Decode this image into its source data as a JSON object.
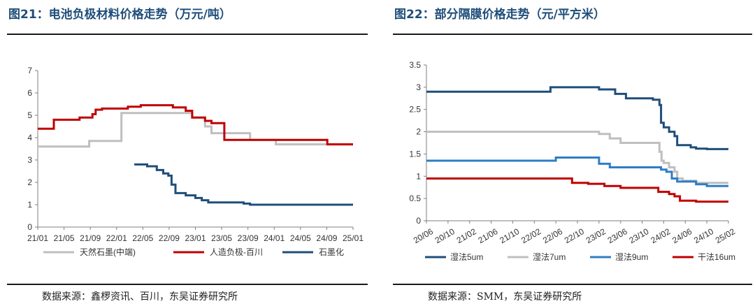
{
  "charts": [
    {
      "title": "图21：电池负极材料价格走势（万元/吨）",
      "source": "数据来源：鑫椤资讯、百川，东吴证券研究所",
      "chart_data": {
        "type": "line",
        "x_labels": [
          "21/01",
          "21/05",
          "21/09",
          "22/01",
          "22/05",
          "22/09",
          "23/01",
          "23/05",
          "23/09",
          "24/01",
          "24/05",
          "24/09",
          "25/01"
        ],
        "x_range": [
          0,
          49
        ],
        "ylim": [
          0,
          7
        ],
        "y_ticks": [
          "0",
          "1",
          "2",
          "3",
          "4",
          "5",
          "6",
          "7"
        ],
        "grid": false,
        "legend_position": "bottom",
        "series": [
          {
            "name": "天然石墨(中端)",
            "color": "#BFBFBF",
            "points": [
              [
                0,
                3.6
              ],
              [
                8,
                3.6
              ],
              [
                8,
                3.85
              ],
              [
                13,
                3.85
              ],
              [
                13,
                5.1
              ],
              [
                24,
                5.1
              ],
              [
                24,
                4.9
              ],
              [
                26,
                4.9
              ],
              [
                26,
                4.5
              ],
              [
                27,
                4.5
              ],
              [
                27,
                4.2
              ],
              [
                33,
                4.2
              ],
              [
                33,
                3.9
              ],
              [
                37,
                3.9
              ],
              [
                37,
                3.7
              ],
              [
                42,
                3.7
              ],
              [
                42,
                3.7
              ],
              [
                49,
                3.7
              ]
            ]
          },
          {
            "name": "人造负极-百川",
            "color": "#C00000",
            "points": [
              [
                0,
                4.4
              ],
              [
                2.5,
                4.4
              ],
              [
                2.5,
                4.8
              ],
              [
                6.5,
                4.8
              ],
              [
                6.5,
                4.9
              ],
              [
                8.5,
                4.9
              ],
              [
                8.5,
                5.05
              ],
              [
                9,
                5.05
              ],
              [
                9,
                5.25
              ],
              [
                10,
                5.25
              ],
              [
                10,
                5.3
              ],
              [
                14,
                5.3
              ],
              [
                14,
                5.38
              ],
              [
                16,
                5.38
              ],
              [
                16,
                5.45
              ],
              [
                21,
                5.45
              ],
              [
                21,
                5.35
              ],
              [
                23,
                5.35
              ],
              [
                23,
                5.2
              ],
              [
                24,
                5.2
              ],
              [
                24,
                4.9
              ],
              [
                26,
                4.9
              ],
              [
                26,
                4.75
              ],
              [
                27,
                4.75
              ],
              [
                27,
                4.65
              ],
              [
                29,
                4.65
              ],
              [
                29,
                3.9
              ],
              [
                42,
                3.9
              ],
              [
                42,
                3.9
              ],
              [
                45,
                3.9
              ],
              [
                45,
                3.7
              ],
              [
                49,
                3.7
              ]
            ]
          },
          {
            "name": "石墨化",
            "color": "#1F4E79",
            "points": [
              [
                15,
                2.8
              ],
              [
                17,
                2.8
              ],
              [
                17,
                2.72
              ],
              [
                18.5,
                2.72
              ],
              [
                18.5,
                2.55
              ],
              [
                19.5,
                2.55
              ],
              [
                19.5,
                2.4
              ],
              [
                20.3,
                2.4
              ],
              [
                20.3,
                2.3
              ],
              [
                20.8,
                2.3
              ],
              [
                20.8,
                1.9
              ],
              [
                21.4,
                1.9
              ],
              [
                21.4,
                1.52
              ],
              [
                23,
                1.52
              ],
              [
                23,
                1.42
              ],
              [
                24.5,
                1.42
              ],
              [
                24.5,
                1.3
              ],
              [
                25.5,
                1.3
              ],
              [
                25.5,
                1.2
              ],
              [
                26.5,
                1.2
              ],
              [
                26.5,
                1.1
              ],
              [
                32,
                1.1
              ],
              [
                32,
                1.05
              ],
              [
                33,
                1.05
              ],
              [
                33,
                1.0
              ],
              [
                49,
                1.0
              ]
            ]
          }
        ]
      }
    },
    {
      "title": "图22：部分隔膜价格走势（元/平方米）",
      "source": "数据来源：SMM，东吴证券研究所",
      "chart_data": {
        "type": "line",
        "x_labels": [
          "20/06",
          "20/10",
          "21/02",
          "21/06",
          "21/10",
          "22/02",
          "22/06",
          "22/10",
          "23/02",
          "23/06",
          "23/10",
          "24/02",
          "24/06",
          "24/10",
          "25/02"
        ],
        "x_range": [
          0,
          56
        ],
        "ylim": [
          0,
          3.5
        ],
        "y_ticks": [
          "0",
          "0.5",
          "1",
          "1.5",
          "2",
          "2.5",
          "3",
          "3.5"
        ],
        "grid": false,
        "legend_position": "bottom",
        "series": [
          {
            "name": "湿法5um",
            "color": "#1F4E79",
            "points": [
              [
                0,
                2.9
              ],
              [
                23,
                2.9
              ],
              [
                23,
                3.0
              ],
              [
                32,
                3.0
              ],
              [
                32,
                2.95
              ],
              [
                35,
                2.95
              ],
              [
                35,
                2.85
              ],
              [
                37,
                2.85
              ],
              [
                37,
                2.75
              ],
              [
                42,
                2.75
              ],
              [
                42,
                2.72
              ],
              [
                43.2,
                2.72
              ],
              [
                43.2,
                2.6
              ],
              [
                43.5,
                2.6
              ],
              [
                43.5,
                2.2
              ],
              [
                44,
                2.2
              ],
              [
                44,
                2.1
              ],
              [
                45,
                2.1
              ],
              [
                45,
                2.0
              ],
              [
                46,
                2.0
              ],
              [
                46,
                1.9
              ],
              [
                46.5,
                1.9
              ],
              [
                46.5,
                1.7
              ],
              [
                49,
                1.7
              ],
              [
                49,
                1.65
              ],
              [
                50,
                1.65
              ],
              [
                50,
                1.62
              ],
              [
                52,
                1.62
              ],
              [
                52,
                1.61
              ],
              [
                56,
                1.61
              ]
            ]
          },
          {
            "name": "湿法7um",
            "color": "#BFBFBF",
            "points": [
              [
                0,
                2.0
              ],
              [
                32,
                2.0
              ],
              [
                32,
                1.95
              ],
              [
                34,
                1.95
              ],
              [
                34,
                1.85
              ],
              [
                36,
                1.85
              ],
              [
                36,
                1.75
              ],
              [
                43.2,
                1.75
              ],
              [
                43.2,
                1.55
              ],
              [
                43.6,
                1.55
              ],
              [
                43.6,
                1.35
              ],
              [
                44,
                1.35
              ],
              [
                44,
                1.3
              ],
              [
                45,
                1.3
              ],
              [
                45,
                1.2
              ],
              [
                46,
                1.2
              ],
              [
                46,
                1.1
              ],
              [
                46.5,
                1.1
              ],
              [
                46.5,
                0.95
              ],
              [
                47.5,
                0.95
              ],
              [
                47.5,
                0.9
              ],
              [
                50,
                0.9
              ],
              [
                50,
                0.85
              ],
              [
                56,
                0.85
              ]
            ]
          },
          {
            "name": "湿法9um",
            "color": "#2E7DC4",
            "points": [
              [
                0,
                1.35
              ],
              [
                24,
                1.35
              ],
              [
                24,
                1.42
              ],
              [
                32,
                1.42
              ],
              [
                32,
                1.28
              ],
              [
                34,
                1.28
              ],
              [
                34,
                1.2
              ],
              [
                43.5,
                1.2
              ],
              [
                43.5,
                1.15
              ],
              [
                44.5,
                1.15
              ],
              [
                44.5,
                1.1
              ],
              [
                45.5,
                1.1
              ],
              [
                45.5,
                0.95
              ],
              [
                46.5,
                0.95
              ],
              [
                46.5,
                0.88
              ],
              [
                50,
                0.88
              ],
              [
                50,
                0.82
              ],
              [
                52,
                0.82
              ],
              [
                52,
                0.78
              ],
              [
                56,
                0.78
              ]
            ]
          },
          {
            "name": "干法16um",
            "color": "#C00000",
            "points": [
              [
                0,
                0.95
              ],
              [
                27,
                0.95
              ],
              [
                27,
                0.85
              ],
              [
                30,
                0.85
              ],
              [
                30,
                0.83
              ],
              [
                33,
                0.83
              ],
              [
                33,
                0.78
              ],
              [
                36,
                0.78
              ],
              [
                36,
                0.74
              ],
              [
                43,
                0.74
              ],
              [
                43,
                0.65
              ],
              [
                45,
                0.65
              ],
              [
                45,
                0.6
              ],
              [
                46,
                0.6
              ],
              [
                46,
                0.55
              ],
              [
                47,
                0.55
              ],
              [
                47,
                0.45
              ],
              [
                50,
                0.45
              ],
              [
                50,
                0.43
              ],
              [
                56,
                0.43
              ]
            ]
          }
        ]
      }
    }
  ]
}
